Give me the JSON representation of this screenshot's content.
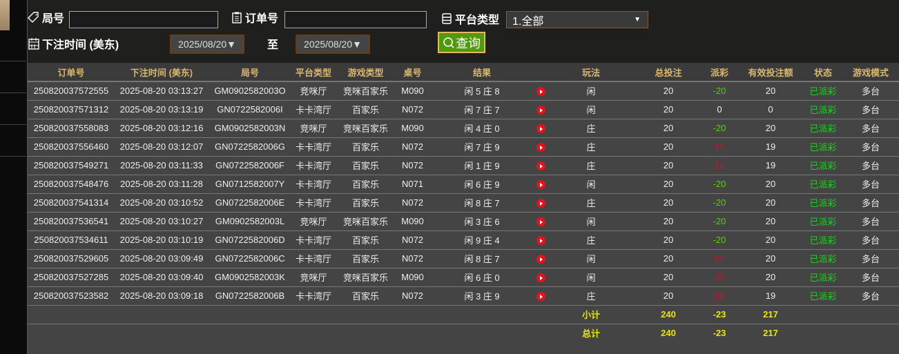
{
  "filters": {
    "round_label": "局号",
    "round_value": "",
    "order_label": "订单号",
    "order_value": "",
    "platform_label": "平台类型",
    "platform_value": "1.全部",
    "time_label": "下注时间 (美东)",
    "date_from": "2025/08/20▼",
    "to_label": "至",
    "date_to": "2025/08/20▼",
    "query_label": "查询"
  },
  "table": {
    "headers": [
      "订单号",
      "下注时间 (美东)",
      "局号",
      "平台类型",
      "游戏类型",
      "桌号",
      "结果",
      "",
      "玩法",
      "总投注",
      "派彩",
      "有效投注额",
      "状态",
      "游戏模式"
    ],
    "rows": [
      [
        "250820037572555",
        "2025-08-20 03:13:27",
        "GM0902582003O",
        "竞咪厅",
        "竞咪百家乐",
        "M090",
        "闲 5 庄 8",
        "闲",
        "20",
        "-20",
        "20",
        "已派彩",
        "多台"
      ],
      [
        "250820037571312",
        "2025-08-20 03:13:19",
        "GN0722582006I",
        "卡卡湾厅",
        "百家乐",
        "N072",
        "闲 7 庄 7",
        "闲",
        "20",
        "0",
        "0",
        "已派彩",
        "多台"
      ],
      [
        "250820037558083",
        "2025-08-20 03:12:16",
        "GM0902582003N",
        "竞咪厅",
        "竞咪百家乐",
        "M090",
        "闲 4 庄 0",
        "庄",
        "20",
        "-20",
        "20",
        "已派彩",
        "多台"
      ],
      [
        "250820037556460",
        "2025-08-20 03:12:07",
        "GN0722582006G",
        "卡卡湾厅",
        "百家乐",
        "N072",
        "闲 7 庄 9",
        "庄",
        "20",
        "19",
        "19",
        "已派彩",
        "多台"
      ],
      [
        "250820037549271",
        "2025-08-20 03:11:33",
        "GN0722582006F",
        "卡卡湾厅",
        "百家乐",
        "N072",
        "闲 1 庄 9",
        "庄",
        "20",
        "19",
        "19",
        "已派彩",
        "多台"
      ],
      [
        "250820037548476",
        "2025-08-20 03:11:28",
        "GN0712582007Y",
        "卡卡湾厅",
        "百家乐",
        "N071",
        "闲 6 庄 9",
        "闲",
        "20",
        "-20",
        "20",
        "已派彩",
        "多台"
      ],
      [
        "250820037541314",
        "2025-08-20 03:10:52",
        "GN0722582006E",
        "卡卡湾厅",
        "百家乐",
        "N072",
        "闲 8 庄 7",
        "庄",
        "20",
        "-20",
        "20",
        "已派彩",
        "多台"
      ],
      [
        "250820037536541",
        "2025-08-20 03:10:27",
        "GM0902582003L",
        "竞咪厅",
        "竞咪百家乐",
        "M090",
        "闲 3 庄 6",
        "闲",
        "20",
        "-20",
        "20",
        "已派彩",
        "多台"
      ],
      [
        "250820037534611",
        "2025-08-20 03:10:19",
        "GN0722582006D",
        "卡卡湾厅",
        "百家乐",
        "N072",
        "闲 9 庄 4",
        "庄",
        "20",
        "-20",
        "20",
        "已派彩",
        "多台"
      ],
      [
        "250820037529605",
        "2025-08-20 03:09:49",
        "GN0722582006C",
        "卡卡湾厅",
        "百家乐",
        "N072",
        "闲 8 庄 7",
        "闲",
        "20",
        "20",
        "20",
        "已派彩",
        "多台"
      ],
      [
        "250820037527285",
        "2025-08-20 03:09:40",
        "GM0902582003K",
        "竞咪厅",
        "竞咪百家乐",
        "M090",
        "闲 6 庄 0",
        "闲",
        "20",
        "20",
        "20",
        "已派彩",
        "多台"
      ],
      [
        "250820037523582",
        "2025-08-20 03:09:18",
        "GN0722582006B",
        "卡卡湾厅",
        "百家乐",
        "N072",
        "闲 3 庄 9",
        "庄",
        "20",
        "19",
        "19",
        "已派彩",
        "多台"
      ]
    ],
    "subtotal": {
      "label": "小计",
      "total_bet": "240",
      "payout": "-23",
      "valid_bet": "217"
    },
    "grand_total": {
      "label": "总计",
      "total_bet": "240",
      "payout": "-23",
      "valid_bet": "217"
    }
  },
  "colors": {
    "header_text": "#d9b76e",
    "negative_payout": "#5bd000",
    "positive_payout": "#d0112b",
    "status": "#1fd11f",
    "totals": "#e8e800",
    "query_button": "#4f9b0c"
  },
  "icons": {
    "round": "tag-icon",
    "order": "clipboard-icon",
    "platform": "server-icon",
    "time": "calendar-icon",
    "query": "search-icon",
    "replay": "play-icon"
  }
}
